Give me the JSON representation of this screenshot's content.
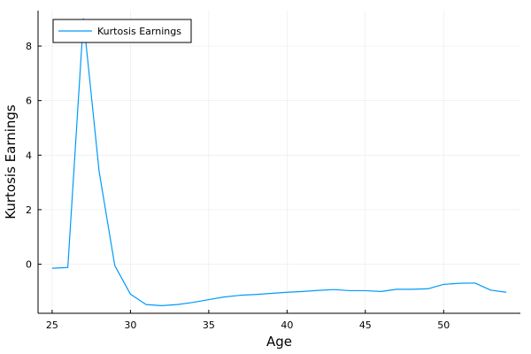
{
  "chart_data": {
    "type": "line",
    "xlabel": "Age",
    "ylabel": "Kurtosis Earnings",
    "xlim": [
      24.1,
      54.9
    ],
    "ylim": [
      -1.8,
      9.3
    ],
    "xticks": [
      25,
      30,
      35,
      40,
      45,
      50
    ],
    "yticks": [
      0,
      2,
      4,
      6,
      8
    ],
    "grid": true,
    "legend_position": "top-left",
    "series": [
      {
        "name": "Kurtosis Earnings",
        "color": "#009af9",
        "x": [
          25,
          26,
          27,
          28,
          29,
          30,
          31,
          32,
          33,
          34,
          35,
          36,
          37,
          38,
          39,
          40,
          41,
          42,
          43,
          44,
          45,
          46,
          47,
          48,
          49,
          50,
          51,
          52,
          53,
          54
        ],
        "y": [
          -0.15,
          -0.12,
          9.0,
          3.4,
          -0.05,
          -1.1,
          -1.48,
          -1.52,
          -1.48,
          -1.4,
          -1.3,
          -1.2,
          -1.14,
          -1.11,
          -1.07,
          -1.03,
          -1.0,
          -0.96,
          -0.93,
          -0.97,
          -0.97,
          -1.0,
          -0.92,
          -0.92,
          -0.9,
          -0.74,
          -0.7,
          -0.69,
          -0.95,
          -1.03
        ]
      }
    ]
  }
}
